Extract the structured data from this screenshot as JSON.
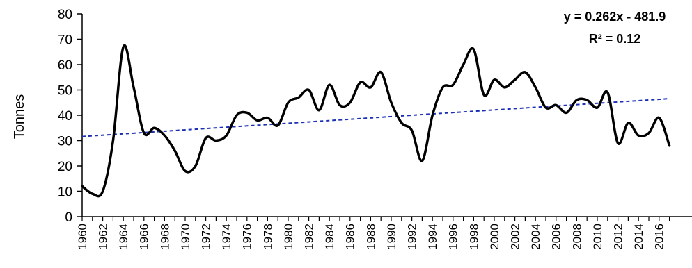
{
  "chart_data": {
    "type": "line",
    "title": "",
    "xlabel": "",
    "ylabel": "Tonnes",
    "ylim": [
      0,
      80
    ],
    "yticks": [
      0,
      10,
      20,
      30,
      40,
      50,
      60,
      70,
      80
    ],
    "xlim": [
      1960,
      2017
    ],
    "xticks": [
      1960,
      1962,
      1964,
      1966,
      1968,
      1970,
      1972,
      1974,
      1976,
      1978,
      1980,
      1982,
      1984,
      1986,
      1988,
      1990,
      1992,
      1994,
      1996,
      1998,
      2000,
      2002,
      2004,
      2006,
      2008,
      2010,
      2012,
      2014,
      2016
    ],
    "grid": false,
    "series": [
      {
        "x": [
          1960,
          1961,
          1962,
          1963,
          1964,
          1965,
          1966,
          1967,
          1968,
          1969,
          1970,
          1971,
          1972,
          1973,
          1974,
          1975,
          1976,
          1977,
          1978,
          1979,
          1980,
          1981,
          1982,
          1983,
          1984,
          1985,
          1986,
          1987,
          1988,
          1989,
          1990,
          1991,
          1992,
          1993,
          1994,
          1995,
          1996,
          1997,
          1998,
          1999,
          2000,
          2001,
          2002,
          2003,
          2004,
          2005,
          2006,
          2007,
          2008,
          2009,
          2010,
          2011,
          2012,
          2013,
          2014,
          2015,
          2016,
          2017
        ],
        "values": [
          12,
          9,
          10,
          30,
          67,
          51,
          33,
          35,
          32,
          26,
          18,
          20,
          31,
          30,
          32,
          40,
          41,
          38,
          39,
          36,
          45,
          47,
          50,
          42,
          52,
          44,
          45,
          53,
          51,
          57,
          45,
          37,
          34,
          22,
          40,
          51,
          52,
          60,
          66,
          48,
          54,
          51,
          54,
          57,
          51,
          43,
          44,
          41,
          46,
          46,
          43,
          49,
          29,
          37,
          32,
          33,
          39,
          28
        ],
        "color": "#000000"
      }
    ],
    "trendline": {
      "slope": 0.262,
      "intercept": -481.9,
      "color": "#1a2fb5",
      "style": "dashed"
    },
    "annotations": [
      "y = 0.262x - 481.9",
      "R² = 0.12"
    ]
  }
}
